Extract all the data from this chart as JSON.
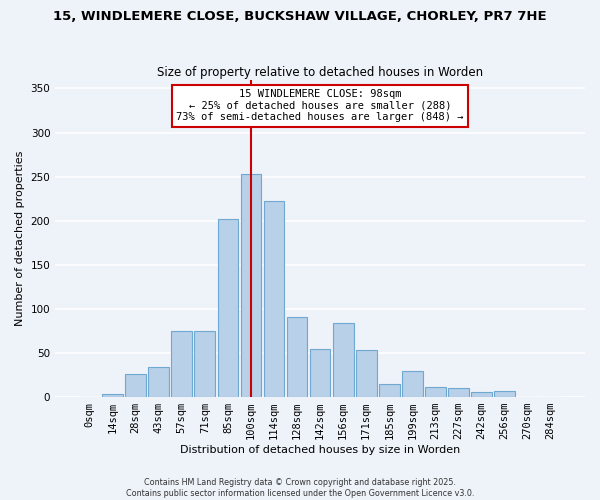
{
  "title": "15, WINDLEMERE CLOSE, BUCKSHAW VILLAGE, CHORLEY, PR7 7HE",
  "subtitle": "Size of property relative to detached houses in Worden",
  "xlabel": "Distribution of detached houses by size in Worden",
  "ylabel": "Number of detached properties",
  "bar_labels": [
    "0sqm",
    "14sqm",
    "28sqm",
    "43sqm",
    "57sqm",
    "71sqm",
    "85sqm",
    "100sqm",
    "114sqm",
    "128sqm",
    "142sqm",
    "156sqm",
    "171sqm",
    "185sqm",
    "199sqm",
    "213sqm",
    "227sqm",
    "242sqm",
    "256sqm",
    "270sqm",
    "284sqm"
  ],
  "bar_values": [
    0,
    4,
    26,
    34,
    75,
    75,
    202,
    253,
    222,
    91,
    54,
    84,
    53,
    15,
    30,
    12,
    10,
    6,
    7,
    0,
    0
  ],
  "bar_color": "#b8d0e8",
  "bar_edgecolor": "#6fa8d0",
  "vline_x_index": 7,
  "vline_color": "#cc0000",
  "annotation_title": "15 WINDLEMERE CLOSE: 98sqm",
  "annotation_line1": "← 25% of detached houses are smaller (288)",
  "annotation_line2": "73% of semi-detached houses are larger (848) →",
  "annotation_box_facecolor": "#ffffff",
  "annotation_box_edgecolor": "#cc0000",
  "ylim": [
    0,
    360
  ],
  "yticks": [
    0,
    50,
    100,
    150,
    200,
    250,
    300,
    350
  ],
  "footer_line1": "Contains HM Land Registry data © Crown copyright and database right 2025.",
  "footer_line2": "Contains public sector information licensed under the Open Government Licence v3.0.",
  "background_color": "#eef3fa",
  "grid_color": "#ffffff",
  "title_fontsize": 9.5,
  "subtitle_fontsize": 8.5,
  "ylabel_fontsize": 8,
  "xlabel_fontsize": 8,
  "tick_fontsize": 7.5,
  "annotation_fontsize": 7.5,
  "footer_fontsize": 5.8
}
